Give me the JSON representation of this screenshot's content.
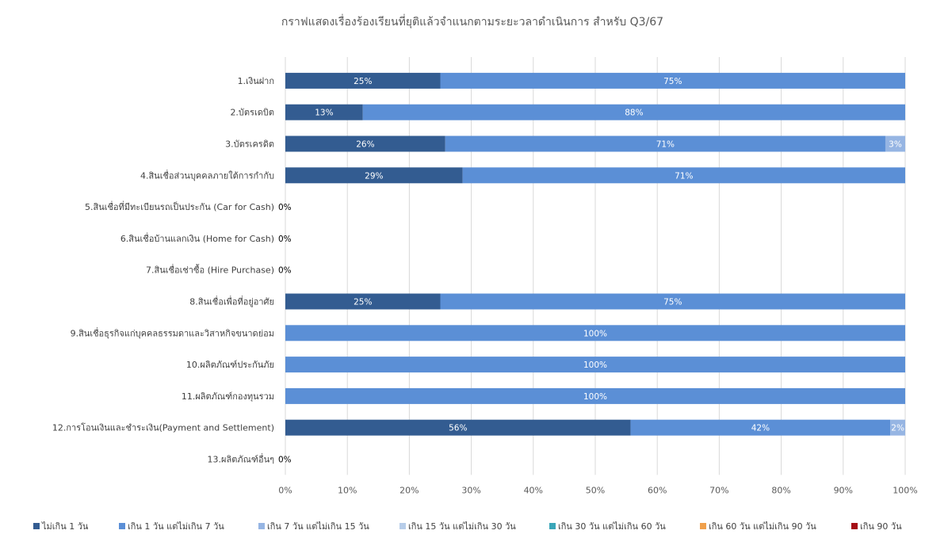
{
  "chart_data": {
    "type": "bar",
    "orientation": "horizontal",
    "stacked": "percent",
    "title": "กราฟแสดงเรื่องร้องเรียนที่ยุติแล้วจำแนกตามระยะวลาดำเนินการ สำหรับ Q3/67",
    "categories": [
      "1.เงินฝาก",
      "2.บัตรเดบิต",
      "3.บัตรเครดิต",
      "4.สินเชื่อส่วนบุคคลภายใต้การกำกับ",
      "5.สินเชื่อที่มีทะเบียนรถเป็นประกัน  (Car for Cash)",
      "6.สินเชื่อบ้านแลกเงิน  (Home for Cash)",
      "7.สินเชื่อเช่าซื้อ  (Hire Purchase)",
      "8.สินเชื่อเพื่อที่อยู่อาศัย",
      "9.สินเชื่อธุรกิจแก่บุคคลธรรมดาและวิสาหกิจขนาดย่อม",
      "10.ผลิตภัณฑ์ประกันภัย",
      "11.ผลิตภัณฑ์กองทุนรวม",
      "12.การโอนเงินและชำระเงิน(Payment  and Settlement)",
      "13.ผลิตภัณฑ์อื่นๆ"
    ],
    "series": [
      {
        "name": "ไม่เกิน 1 วัน",
        "color": "#335c91",
        "values": [
          25,
          12.5,
          25.8,
          28.6,
          0,
          0,
          0,
          25,
          0,
          0,
          0,
          55.7,
          0
        ],
        "labels": [
          "25%",
          "13%",
          "26%",
          "29%",
          "",
          "",
          "",
          "25%",
          "",
          "",
          "",
          "56%",
          ""
        ]
      },
      {
        "name": "เกิน 1 วัน แต่ไม่เกิน 7 วัน",
        "color": "#5b8fd6",
        "values": [
          75,
          87.5,
          71,
          71.4,
          0,
          0,
          0,
          75,
          100,
          100,
          100,
          41.9,
          0
        ],
        "labels": [
          "75%",
          "88%",
          "71%",
          "71%",
          "",
          "",
          "",
          "75%",
          "100%",
          "100%",
          "100%",
          "42%",
          ""
        ]
      },
      {
        "name": "เกิน 7 วัน แต่ไม่เกิน 15 วัน",
        "color": "#96b5e3",
        "values": [
          0,
          0,
          3.2,
          0,
          0,
          0,
          0,
          0,
          0,
          0,
          0,
          2.4,
          0
        ],
        "labels": [
          "",
          "",
          "3%",
          "",
          "",
          "",
          "",
          "",
          "",
          "",
          "",
          "2%",
          ""
        ]
      },
      {
        "name": "เกิน 15 วัน แต่ไม่เกิน 30 วัน",
        "color": "#b7cde9",
        "values": [
          0,
          0,
          0,
          0,
          0,
          0,
          0,
          0,
          0,
          0,
          0,
          0,
          0
        ],
        "labels": []
      },
      {
        "name": "เกิน 30 วัน แต่ไม่เกิน 60 วัน",
        "color": "#3aa6b9",
        "values": [
          0,
          0,
          0,
          0,
          0,
          0,
          0,
          0,
          0,
          0,
          0,
          0,
          0
        ],
        "labels": []
      },
      {
        "name": "เกิน 60 วัน แต่ไม่เกิน 90 วัน",
        "color": "#f0a04b",
        "values": [
          0,
          0,
          0,
          0,
          0,
          0,
          0,
          0,
          0,
          0,
          0,
          0,
          0
        ],
        "labels": []
      },
      {
        "name": "เกิน 90 วัน",
        "color": "#a50f15",
        "values": [
          0,
          0,
          0,
          0,
          0,
          0,
          0,
          0,
          0,
          0,
          0,
          0,
          0
        ],
        "labels": []
      }
    ],
    "zero_labels": [
      "",
      "",
      "",
      "",
      "0%",
      "0%",
      "0%",
      "",
      "",
      "",
      "",
      "",
      "0%"
    ],
    "x_ticks": [
      "0%",
      "10%",
      "20%",
      "30%",
      "40%",
      "50%",
      "60%",
      "70%",
      "80%",
      "90%",
      "100%"
    ],
    "xlim": [
      0,
      100
    ],
    "grid": true,
    "legend_position": "bottom"
  }
}
